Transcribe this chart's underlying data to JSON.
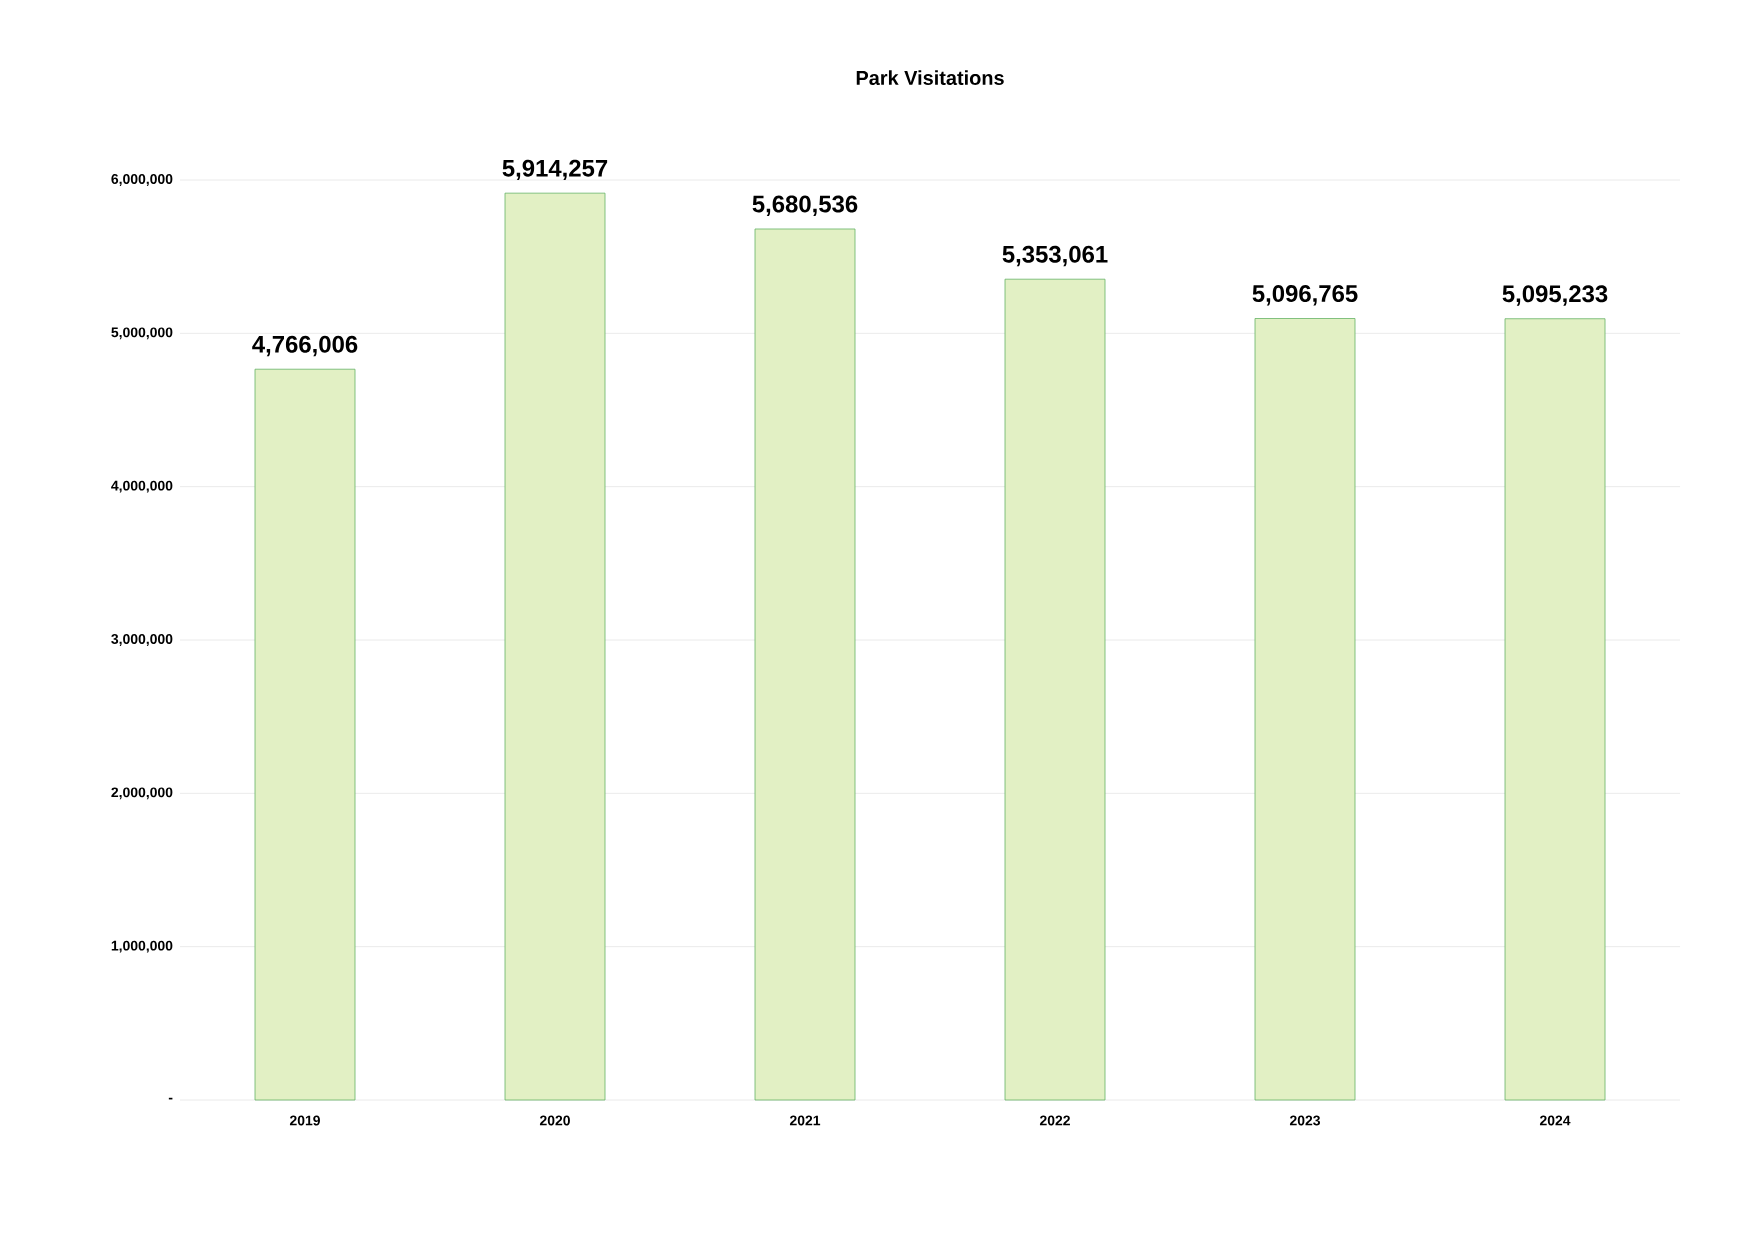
{
  "chart_data": {
    "type": "bar",
    "title": "Park Visitations",
    "categories": [
      "2019",
      "2020",
      "2021",
      "2022",
      "2023",
      "2024"
    ],
    "values": [
      4766006,
      5914257,
      5680536,
      5353061,
      5096765,
      5095233
    ],
    "value_labels": [
      "4,766,006",
      "5,914,257",
      "5,680,536",
      "5,353,061",
      "5,096,765",
      "5,095,233"
    ],
    "color": "#e2f0c4",
    "ylim": [
      0,
      6000000
    ],
    "yticks": [
      {
        "value": 0,
        "label": "-"
      },
      {
        "value": 1000000,
        "label": "1,000,000"
      },
      {
        "value": 2000000,
        "label": "2,000,000"
      },
      {
        "value": 3000000,
        "label": "3,000,000"
      },
      {
        "value": 4000000,
        "label": "4,000,000"
      },
      {
        "value": 5000000,
        "label": "5,000,000"
      },
      {
        "value": 6000000,
        "label": "6,000,000"
      }
    ],
    "grid": "y"
  }
}
